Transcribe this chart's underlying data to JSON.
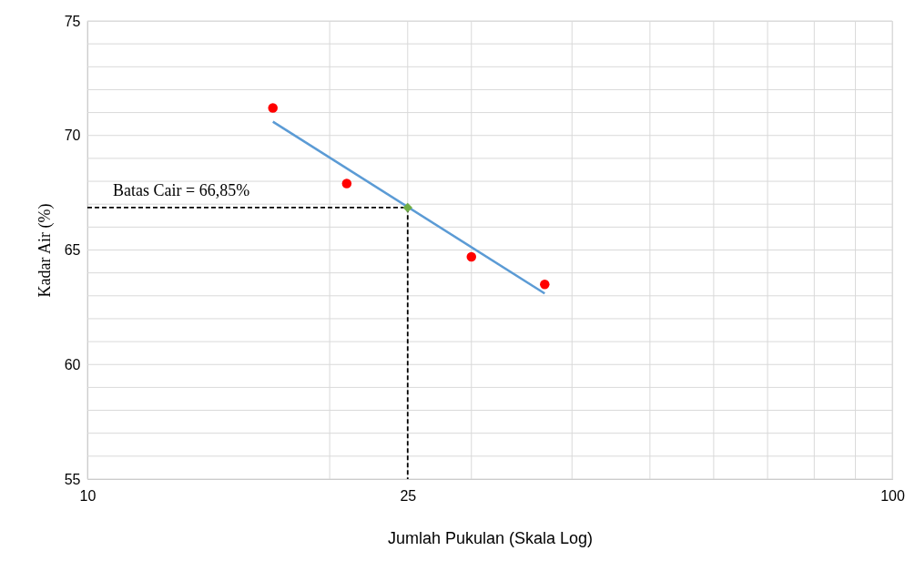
{
  "chart_data": {
    "type": "scatter",
    "xlabel": "Jumlah Pukulan (Skala Log)",
    "ylabel": "Kadar Air (%)",
    "log": "x",
    "grid": true,
    "xlim": [
      10,
      100
    ],
    "xticks": [
      10,
      {
        "value": 20,
        "label": null
      },
      25,
      {
        "value": 30,
        "label": null
      },
      {
        "value": 40,
        "label": null
      },
      {
        "value": 50,
        "label": null
      },
      {
        "value": 60,
        "label": null
      },
      {
        "value": 70,
        "label": null
      },
      {
        "value": 80,
        "label": null
      },
      {
        "value": 90,
        "label": null
      },
      100
    ],
    "ylim": [
      55,
      75
    ],
    "yticks": [
      55,
      {
        "value": 56,
        "label": null
      },
      {
        "value": 57,
        "label": null
      },
      {
        "value": 58,
        "label": null
      },
      {
        "value": 59,
        "label": null
      },
      60,
      {
        "value": 61,
        "label": null
      },
      {
        "value": 62,
        "label": null
      },
      {
        "value": 63,
        "label": null
      },
      {
        "value": 64,
        "label": null
      },
      65,
      {
        "value": 66,
        "label": null
      },
      {
        "value": 67,
        "label": null
      },
      {
        "value": 68,
        "label": null
      },
      {
        "value": 69,
        "label": null
      },
      70,
      {
        "value": 71,
        "label": null
      },
      {
        "value": 72,
        "label": null
      },
      {
        "value": 73,
        "label": null
      },
      {
        "value": 74,
        "label": null
      },
      75
    ],
    "series": [
      {
        "color": "#ff0000",
        "marker": "circle",
        "x": [
          17,
          21,
          30,
          37
        ],
        "values": [
          71.2,
          67.9,
          64.7,
          63.5
        ]
      },
      {
        "type": "line",
        "color": "#5b9bd5",
        "line_style": "solid",
        "x": [
          17,
          37
        ],
        "values": [
          70.6,
          63.1
        ]
      },
      {
        "type": "line",
        "color": "#000000",
        "line_style": "dashed",
        "x": [
          10,
          25,
          25
        ],
        "values": [
          66.85,
          66.85,
          55
        ]
      },
      {
        "color": "#70ad47",
        "marker": "diamond",
        "x": [
          25
        ],
        "values": [
          66.85
        ]
      }
    ],
    "annotations": [
      "Batas Cair = 66,85%"
    ]
  }
}
